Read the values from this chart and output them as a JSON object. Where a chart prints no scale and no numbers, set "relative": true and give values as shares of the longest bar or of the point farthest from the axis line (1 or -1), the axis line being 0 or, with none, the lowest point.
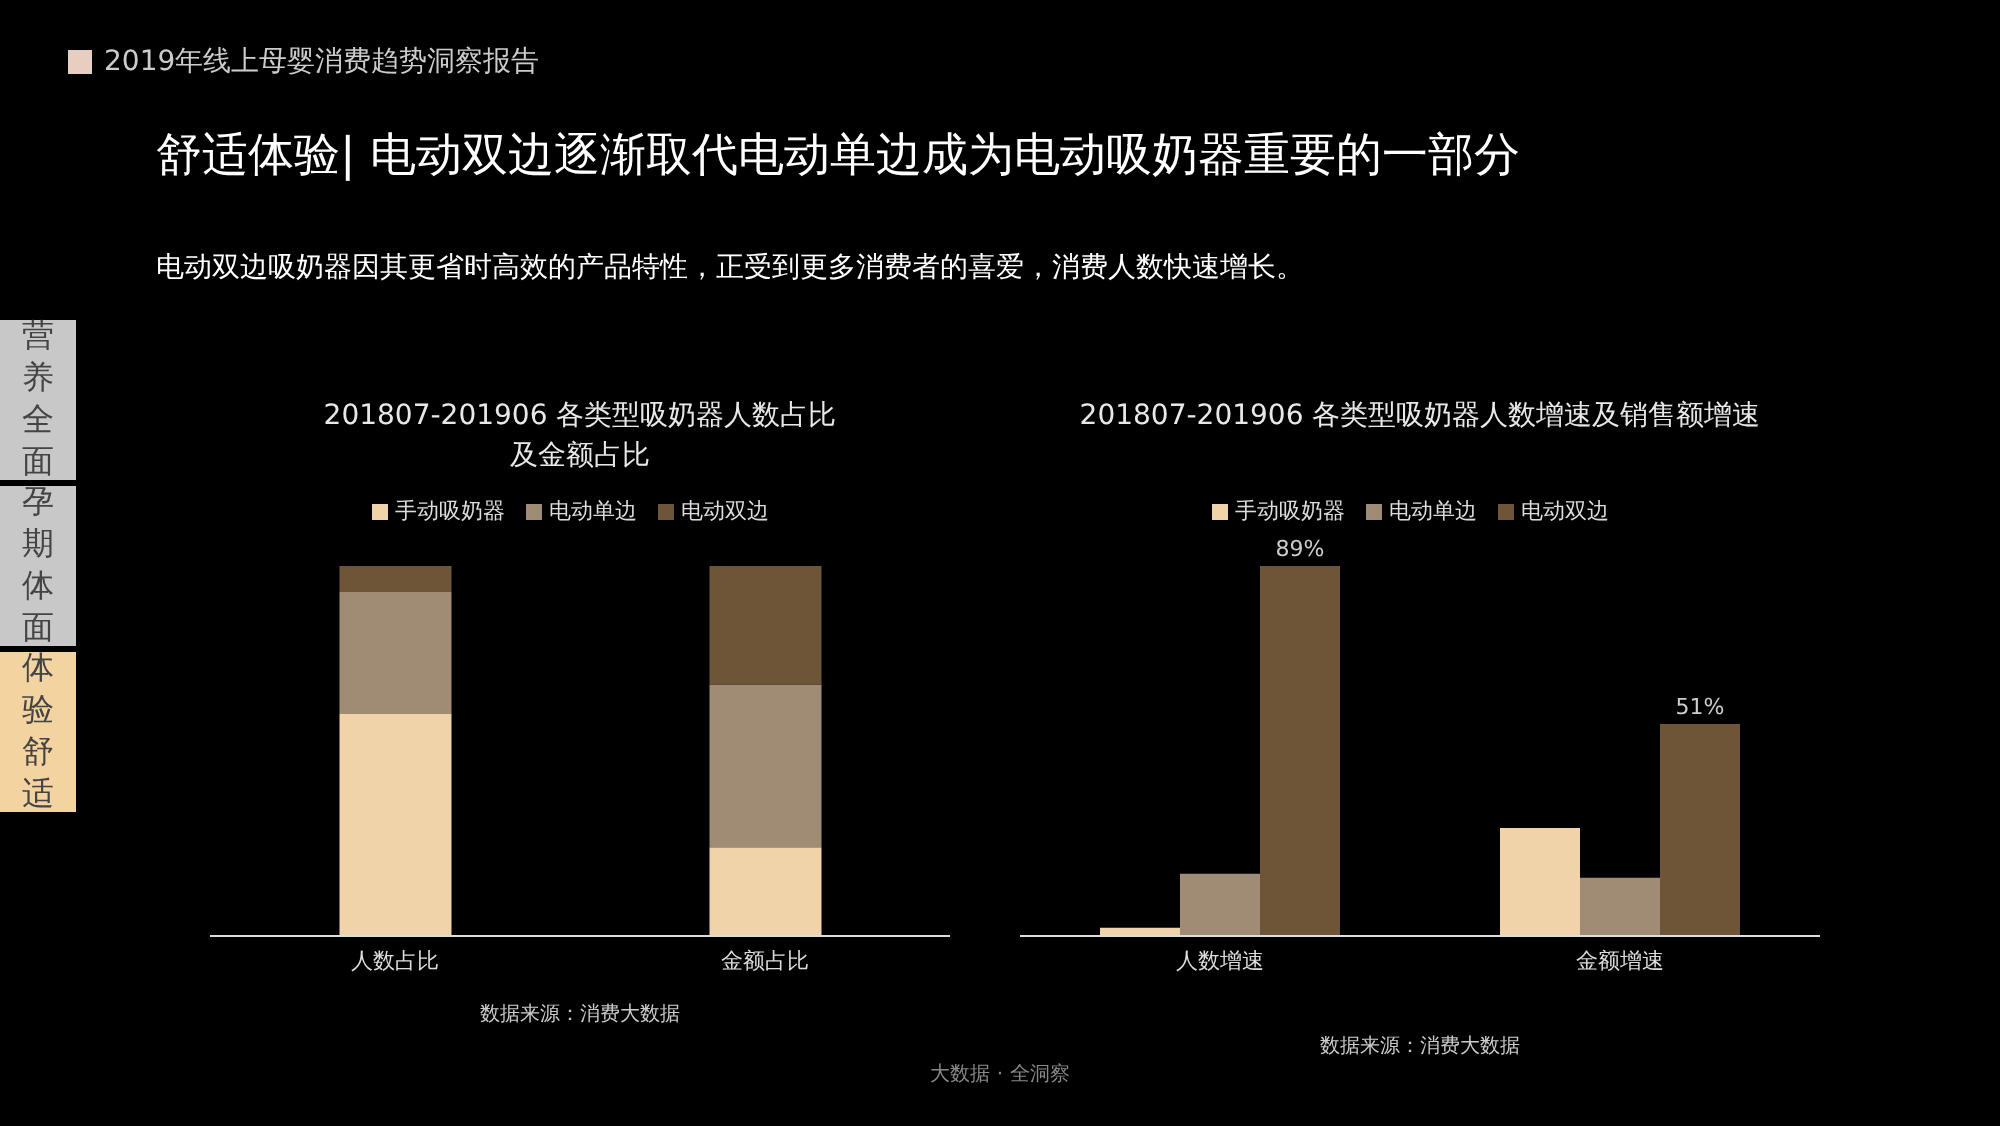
{
  "chart_data": [
    {
      "type": "bar",
      "title": "201807-201906 各类型吸奶器人数占比及金额占比",
      "categories": [
        "人数占比",
        "金额占比"
      ],
      "stacked": true,
      "relative": true,
      "legend": "top",
      "series": [
        {
          "name": "手动吸奶器",
          "color": "#f0d3a8",
          "values": [
            0.6,
            0.24
          ]
        },
        {
          "name": "电动单边",
          "color": "#a08c74",
          "values": [
            0.33,
            0.44
          ]
        },
        {
          "name": "电动双边",
          "color": "#6e5538",
          "values": [
            0.07,
            0.32
          ]
        }
      ],
      "annotations": [
        "2019年线上母婴消费趋势洞察报告",
        "舒适体验| 电动双边逐渐取代电动单边成为电动吸奶器重要的一部分",
        "电动双边吸奶器因其更省时高效的产品特性，正受到更多消费者的喜爱，消费人数快速增长。",
        "营养全面",
        "孕期体面",
        "体验舒适",
        "数据来源：消费大数据",
        "大数据 · 全洞察"
      ]
    },
    {
      "type": "bar",
      "title": "201807-201906 各类型吸奶器人数增速及销售额增速",
      "categories": [
        "人数增速",
        "金额增速"
      ],
      "legend": "top",
      "series": [
        {
          "name": "手动吸奶器",
          "color": "#f0d3a8",
          "values": [
            2,
            26
          ]
        },
        {
          "name": "电动单边",
          "color": "#a08c74",
          "values": [
            15,
            14
          ]
        },
        {
          "name": "电动双边",
          "color": "#6e5538",
          "values": [
            89,
            51
          ],
          "value_labels": [
            "89%",
            "51%"
          ]
        }
      ],
      "annotations": [
        "数据来源：消费大数据"
      ]
    }
  ]
}
